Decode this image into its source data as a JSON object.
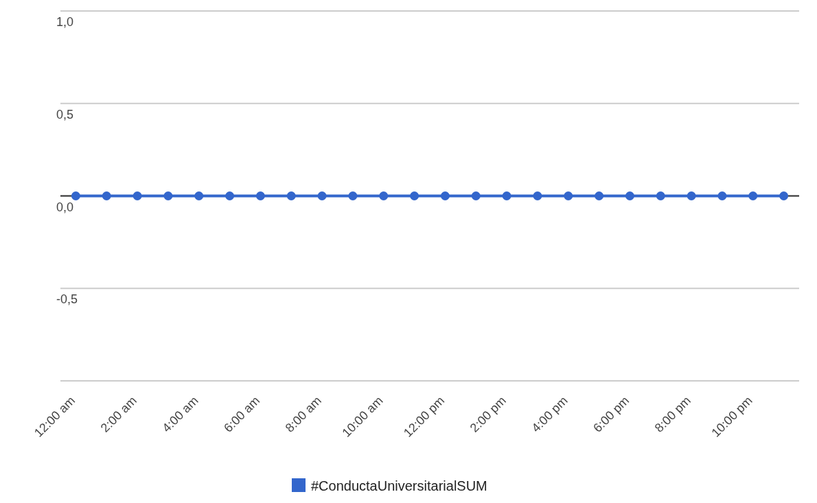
{
  "chart_data": {
    "type": "line",
    "x": [
      0,
      1,
      2,
      3,
      4,
      5,
      6,
      7,
      8,
      9,
      10,
      11,
      12,
      13,
      14,
      15,
      16,
      17,
      18,
      19,
      20,
      21,
      22,
      23
    ],
    "series": [
      {
        "name": "#ConductaUniversitarialSUM",
        "color": "#3366cc",
        "values": [
          0,
          0,
          0,
          0,
          0,
          0,
          0,
          0,
          0,
          0,
          0,
          0,
          0,
          0,
          0,
          0,
          0,
          0,
          0,
          0,
          0,
          0,
          0,
          0
        ]
      }
    ],
    "xlim": [
      -0.5,
      23.5
    ],
    "xticks": [
      {
        "value": 0,
        "label": "12:00 am"
      },
      {
        "value": 2,
        "label": "2:00 am"
      },
      {
        "value": 4,
        "label": "4:00 am"
      },
      {
        "value": 6,
        "label": "6:00 am"
      },
      {
        "value": 8,
        "label": "8:00 am"
      },
      {
        "value": 10,
        "label": "10:00 am"
      },
      {
        "value": 12,
        "label": "12:00 pm"
      },
      {
        "value": 14,
        "label": "2:00 pm"
      },
      {
        "value": 16,
        "label": "4:00 pm"
      },
      {
        "value": 18,
        "label": "6:00 pm"
      },
      {
        "value": 20,
        "label": "8:00 pm"
      },
      {
        "value": 22,
        "label": "10:00 pm"
      }
    ],
    "ylim": [
      -1,
      1
    ],
    "yticks": [
      {
        "value": 1,
        "label": "1,0"
      },
      {
        "value": 0.5,
        "label": "0,5"
      },
      {
        "value": 0,
        "label": "0,0"
      },
      {
        "value": -0.5,
        "label": "-0,5"
      },
      {
        "value": -1,
        "label": null
      }
    ],
    "grid": "y",
    "legend": "bottom",
    "marker": "circle",
    "line_style": "solid"
  }
}
